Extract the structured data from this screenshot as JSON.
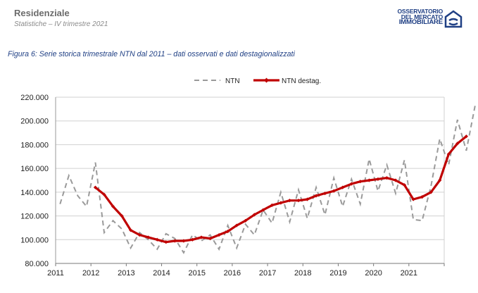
{
  "header": {
    "title": "Residenziale",
    "subtitle": "Statistiche – IV  trimestre 2021",
    "logo_lines": [
      "OSSERVATORIO",
      "DEL MERCATO",
      "IMMOBILIARE"
    ]
  },
  "figure_caption": "Figura 6: Serie storica trimestrale NTN dal 2011 – dati osservati e dati destagionalizzati",
  "colors": {
    "ntn": "#9a9a9a",
    "destag": "#c00000",
    "grid": "#d0d0d0",
    "logo": "#1f3f84"
  },
  "chart_data": {
    "type": "line",
    "title": "",
    "xlabel": "",
    "ylabel": "",
    "ylim": [
      80000,
      220000
    ],
    "yticks": [
      "80.000",
      "100.000",
      "120.000",
      "140.000",
      "160.000",
      "180.000",
      "200.000",
      "220.000"
    ],
    "xticks": [
      "2011",
      "2012",
      "2013",
      "2014",
      "2015",
      "2016",
      "2017",
      "2018",
      "2019",
      "2020",
      "2021"
    ],
    "x_start_year": 2011,
    "grid": "horizontal",
    "legend_position": "top",
    "series": [
      {
        "name": "NTN",
        "style": "dashed",
        "values": [
          130000,
          154000,
          137000,
          128000,
          165000,
          106000,
          116000,
          109000,
          93000,
          106000,
          100000,
          92000,
          105000,
          101000,
          89000,
          104000,
          99000,
          104000,
          92000,
          112000,
          93000,
          113000,
          104000,
          125000,
          114000,
          140000,
          115000,
          142000,
          118000,
          144000,
          121000,
          152000,
          128000,
          151000,
          130000,
          168000,
          141000,
          163000,
          139000,
          167000,
          117000,
          116000,
          145000,
          185000,
          163000,
          201000,
          175000,
          213000
        ]
      },
      {
        "name": "NTN destag.",
        "style": "solid-diamond",
        "start_index": 4,
        "values": [
          144000,
          138000,
          128000,
          120000,
          108000,
          104000,
          102000,
          100000,
          98000,
          99000,
          99000,
          100000,
          102000,
          101000,
          104000,
          107000,
          112000,
          116000,
          121000,
          125000,
          129000,
          131000,
          133000,
          133000,
          134000,
          137000,
          139000,
          141000,
          144000,
          147000,
          149000,
          150000,
          151000,
          152000,
          150000,
          146000,
          134000,
          136000,
          140000,
          150000,
          172000,
          181000,
          187000
        ]
      }
    ]
  }
}
